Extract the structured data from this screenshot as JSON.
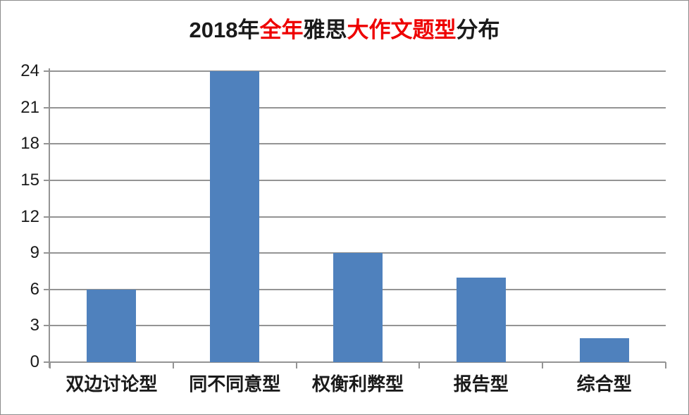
{
  "title": {
    "full_text": "2018年全年雅思大作文题型分布",
    "segments": [
      {
        "text": "2018年",
        "color": "#1a1a1a"
      },
      {
        "text": "全年",
        "color": "#ee0000"
      },
      {
        "text": "雅思",
        "color": "#1a1a1a"
      },
      {
        "text": "大作文题型",
        "color": "#ee0000"
      },
      {
        "text": "分布",
        "color": "#1a1a1a"
      }
    ]
  },
  "chart_data": {
    "type": "bar",
    "title": "2018年全年雅思大作文题型分布",
    "categories": [
      "双边讨论型",
      "同不同意型",
      "权衡利弊型",
      "报告型",
      "综合型"
    ],
    "values": [
      6,
      24,
      9,
      7,
      2
    ],
    "xlabel": "",
    "ylabel": "",
    "ylim": [
      0,
      24
    ],
    "yticks": [
      0,
      3,
      6,
      9,
      12,
      15,
      18,
      21,
      24
    ],
    "grid": true,
    "legend": "none",
    "bar_color": "#4f81bd",
    "gridline_color": "#949494",
    "axis_color": "#949494",
    "title_accent_color": "#ee0000",
    "text_color": "#1a1a1a"
  }
}
